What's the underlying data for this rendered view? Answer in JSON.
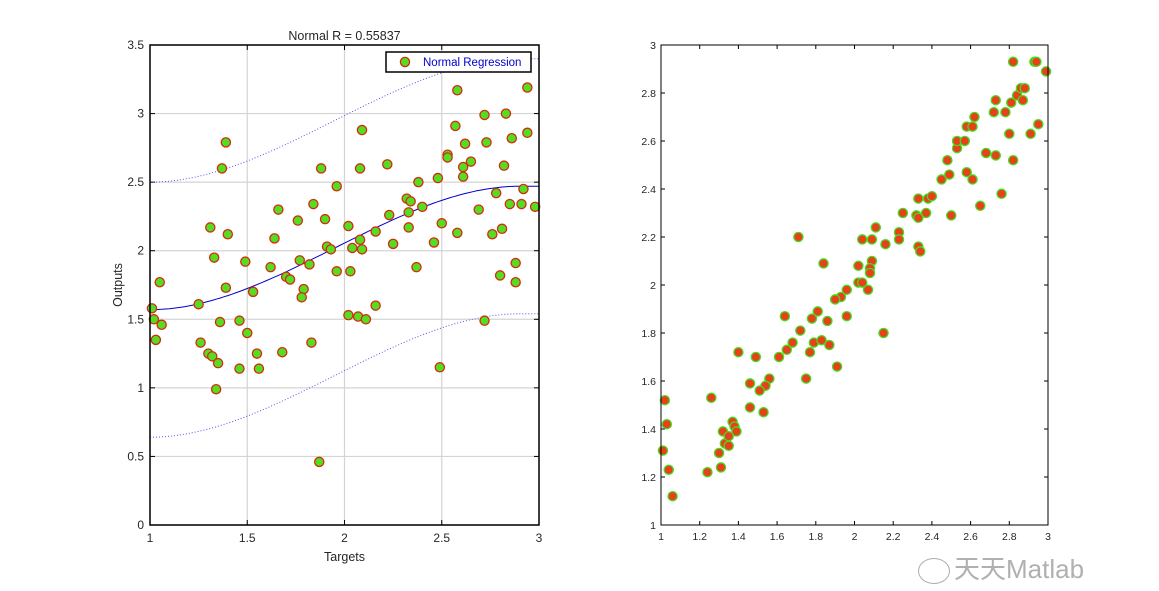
{
  "chart_data": [
    {
      "type": "scatter",
      "title": "Normal R =  0.55837",
      "xlabel": "Targets",
      "ylabel": "Outputs",
      "xlim": [
        1,
        3
      ],
      "ylim": [
        0,
        3.5
      ],
      "xticks": [
        1,
        1.5,
        2,
        2.5,
        3
      ],
      "xtick_labels": [
        "1",
        "1.5",
        "2",
        "2.5",
        "3"
      ],
      "yticks": [
        0,
        0.5,
        1,
        1.5,
        2,
        2.5,
        3,
        3.5
      ],
      "ytick_labels": [
        "0",
        "0.5",
        "1",
        "1.5",
        "2",
        "2.5",
        "3",
        "3.5"
      ],
      "grid": true,
      "legend": {
        "position": "top-right",
        "entries": [
          "Normal Regression"
        ]
      },
      "marker_fill": "#55dd22",
      "marker_edge": "#d42a10",
      "fit_color": "#0000cc",
      "fit": {
        "start": [
          1,
          1.57
        ],
        "end": [
          2.9,
          2.47
        ],
        "shape": "sigmoid",
        "band_halfwidth": 0.93
      },
      "points": [
        [
          1.39,
          2.79
        ],
        [
          1.37,
          2.6
        ],
        [
          1.88,
          2.6
        ],
        [
          2.08,
          2.6
        ],
        [
          2.09,
          2.88
        ],
        [
          2.22,
          2.63
        ],
        [
          2.58,
          3.17
        ],
        [
          2.57,
          2.91
        ],
        [
          2.72,
          2.99
        ],
        [
          2.83,
          3.0
        ],
        [
          2.94,
          3.19
        ],
        [
          2.94,
          2.86
        ],
        [
          2.86,
          2.82
        ],
        [
          2.73,
          2.79
        ],
        [
          2.62,
          2.78
        ],
        [
          2.65,
          2.65
        ],
        [
          2.61,
          2.61
        ],
        [
          2.53,
          2.7
        ],
        [
          2.53,
          2.68
        ],
        [
          2.61,
          2.54
        ],
        [
          2.48,
          2.53
        ],
        [
          2.38,
          2.5
        ],
        [
          2.82,
          2.62
        ],
        [
          2.92,
          2.45
        ],
        [
          2.78,
          2.42
        ],
        [
          2.85,
          2.34
        ],
        [
          2.91,
          2.34
        ],
        [
          2.98,
          2.32
        ],
        [
          2.69,
          2.3
        ],
        [
          2.32,
          2.38
        ],
        [
          2.34,
          2.36
        ],
        [
          2.4,
          2.32
        ],
        [
          2.23,
          2.26
        ],
        [
          2.33,
          2.28
        ],
        [
          2.33,
          2.17
        ],
        [
          2.5,
          2.2
        ],
        [
          2.58,
          2.13
        ],
        [
          2.76,
          2.12
        ],
        [
          2.81,
          2.16
        ],
        [
          2.46,
          2.06
        ],
        [
          2.25,
          2.05
        ],
        [
          2.16,
          2.14
        ],
        [
          2.08,
          2.08
        ],
        [
          2.04,
          2.02
        ],
        [
          2.09,
          2.01
        ],
        [
          2.02,
          2.18
        ],
        [
          1.96,
          2.47
        ],
        [
          1.9,
          2.23
        ],
        [
          1.84,
          2.34
        ],
        [
          1.76,
          2.22
        ],
        [
          1.66,
          2.3
        ],
        [
          1.64,
          2.09
        ],
        [
          1.91,
          2.03
        ],
        [
          1.93,
          2.01
        ],
        [
          1.31,
          2.17
        ],
        [
          1.4,
          2.12
        ],
        [
          1.33,
          1.95
        ],
        [
          1.49,
          1.92
        ],
        [
          1.62,
          1.88
        ],
        [
          1.77,
          1.93
        ],
        [
          1.82,
          1.9
        ],
        [
          1.96,
          1.85
        ],
        [
          2.03,
          1.85
        ],
        [
          2.37,
          1.88
        ],
        [
          2.88,
          1.91
        ],
        [
          2.8,
          1.82
        ],
        [
          1.7,
          1.81
        ],
        [
          1.72,
          1.79
        ],
        [
          2.88,
          1.77
        ],
        [
          1.05,
          1.77
        ],
        [
          1.39,
          1.73
        ],
        [
          1.79,
          1.72
        ],
        [
          1.78,
          1.66
        ],
        [
          1.53,
          1.7
        ],
        [
          1.25,
          1.61
        ],
        [
          2.16,
          1.6
        ],
        [
          1.01,
          1.58
        ],
        [
          1.02,
          1.5
        ],
        [
          1.06,
          1.46
        ],
        [
          1.36,
          1.48
        ],
        [
          1.46,
          1.49
        ],
        [
          2.02,
          1.53
        ],
        [
          2.07,
          1.52
        ],
        [
          2.11,
          1.5
        ],
        [
          2.72,
          1.49
        ],
        [
          1.03,
          1.35
        ],
        [
          1.5,
          1.4
        ],
        [
          1.26,
          1.33
        ],
        [
          1.3,
          1.25
        ],
        [
          1.32,
          1.23
        ],
        [
          1.35,
          1.18
        ],
        [
          1.55,
          1.25
        ],
        [
          1.68,
          1.26
        ],
        [
          1.83,
          1.33
        ],
        [
          1.46,
          1.14
        ],
        [
          1.56,
          1.14
        ],
        [
          2.49,
          1.15
        ],
        [
          1.34,
          0.99
        ],
        [
          1.87,
          0.46
        ]
      ]
    },
    {
      "type": "scatter",
      "title": "",
      "xlabel": "",
      "ylabel": "",
      "xlim": [
        1,
        3
      ],
      "ylim": [
        1,
        3
      ],
      "xticks": [
        1,
        1.2,
        1.4,
        1.6,
        1.8,
        2,
        2.2,
        2.4,
        2.6,
        2.8,
        3
      ],
      "xtick_labels": [
        "1",
        "1.2",
        "1.4",
        "1.6",
        "1.8",
        "2",
        "2.2",
        "2.4",
        "2.6",
        "2.8",
        "3"
      ],
      "yticks": [
        1,
        1.2,
        1.4,
        1.6,
        1.8,
        2,
        2.2,
        2.4,
        2.6,
        2.8,
        3
      ],
      "ytick_labels": [
        "1",
        "1.2",
        "1.4",
        "1.6",
        "1.8",
        "2",
        "2.2",
        "2.4",
        "2.6",
        "2.8",
        "3"
      ],
      "grid": false,
      "marker_fill": "#e8401a",
      "marker_edge": "#44dd22",
      "points": [
        [
          1.71,
          2.2
        ],
        [
          1.84,
          2.09
        ],
        [
          2.02,
          2.08
        ],
        [
          2.02,
          2.01
        ],
        [
          2.04,
          2.01
        ],
        [
          2.04,
          2.19
        ],
        [
          2.09,
          2.19
        ],
        [
          2.11,
          2.24
        ],
        [
          2.09,
          2.1
        ],
        [
          2.08,
          2.07
        ],
        [
          2.08,
          2.05
        ],
        [
          2.16,
          2.17
        ],
        [
          2.23,
          2.22
        ],
        [
          2.23,
          2.19
        ],
        [
          2.25,
          2.3
        ],
        [
          2.33,
          2.36
        ],
        [
          2.32,
          2.29
        ],
        [
          2.33,
          2.28
        ],
        [
          2.33,
          2.16
        ],
        [
          2.34,
          2.14
        ],
        [
          2.37,
          2.3
        ],
        [
          2.38,
          2.36
        ],
        [
          2.4,
          2.37
        ],
        [
          2.45,
          2.44
        ],
        [
          2.49,
          2.46
        ],
        [
          2.48,
          2.52
        ],
        [
          2.5,
          2.29
        ],
        [
          2.53,
          2.57
        ],
        [
          2.53,
          2.6
        ],
        [
          2.57,
          2.6
        ],
        [
          2.58,
          2.47
        ],
        [
          2.58,
          2.66
        ],
        [
          2.61,
          2.66
        ],
        [
          2.62,
          2.7
        ],
        [
          2.61,
          2.44
        ],
        [
          2.65,
          2.33
        ],
        [
          2.68,
          2.55
        ],
        [
          2.73,
          2.54
        ],
        [
          2.72,
          2.72
        ],
        [
          2.73,
          2.77
        ],
        [
          2.76,
          2.38
        ],
        [
          2.78,
          2.72
        ],
        [
          2.81,
          2.76
        ],
        [
          2.8,
          2.63
        ],
        [
          2.82,
          2.52
        ],
        [
          2.82,
          2.93
        ],
        [
          2.84,
          2.79
        ],
        [
          2.86,
          2.82
        ],
        [
          2.88,
          2.82
        ],
        [
          2.87,
          2.77
        ],
        [
          2.91,
          2.63
        ],
        [
          2.95,
          2.67
        ],
        [
          2.93,
          2.93
        ],
        [
          2.94,
          2.93
        ],
        [
          2.99,
          2.89
        ],
        [
          2.07,
          1.98
        ],
        [
          1.96,
          1.98
        ],
        [
          1.93,
          1.95
        ],
        [
          1.9,
          1.94
        ],
        [
          1.96,
          1.87
        ],
        [
          1.81,
          1.89
        ],
        [
          1.78,
          1.86
        ],
        [
          1.86,
          1.85
        ],
        [
          1.64,
          1.87
        ],
        [
          1.72,
          1.81
        ],
        [
          1.68,
          1.76
        ],
        [
          1.65,
          1.73
        ],
        [
          1.61,
          1.7
        ],
        [
          1.79,
          1.76
        ],
        [
          1.83,
          1.77
        ],
        [
          1.87,
          1.75
        ],
        [
          1.77,
          1.72
        ],
        [
          1.91,
          1.66
        ],
        [
          2.15,
          1.8
        ],
        [
          1.75,
          1.61
        ],
        [
          1.4,
          1.72
        ],
        [
          1.49,
          1.7
        ],
        [
          1.46,
          1.59
        ],
        [
          1.56,
          1.61
        ],
        [
          1.54,
          1.58
        ],
        [
          1.51,
          1.56
        ],
        [
          1.46,
          1.49
        ],
        [
          1.53,
          1.47
        ],
        [
          1.26,
          1.53
        ],
        [
          1.02,
          1.52
        ],
        [
          1.03,
          1.42
        ],
        [
          1.01,
          1.31
        ],
        [
          1.04,
          1.23
        ],
        [
          1.06,
          1.12
        ],
        [
          1.24,
          1.22
        ],
        [
          1.31,
          1.24
        ],
        [
          1.3,
          1.3
        ],
        [
          1.32,
          1.39
        ],
        [
          1.33,
          1.34
        ],
        [
          1.35,
          1.33
        ],
        [
          1.35,
          1.37
        ],
        [
          1.37,
          1.43
        ],
        [
          1.38,
          1.41
        ],
        [
          1.39,
          1.39
        ]
      ]
    }
  ],
  "watermark": "天天Matlab"
}
